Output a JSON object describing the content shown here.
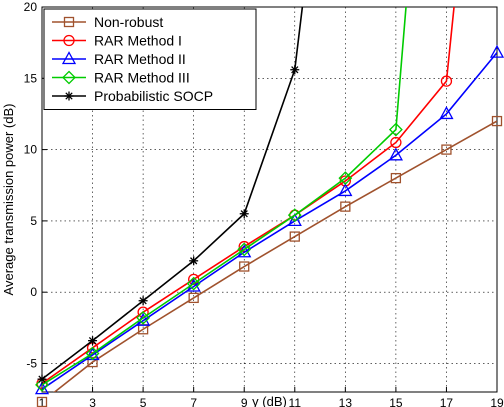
{
  "chart_data": {
    "type": "line",
    "title": "",
    "xlabel": "γ (dB)",
    "ylabel": "Average transmission power (dB)",
    "xlim": [
      1,
      19
    ],
    "ylim": [
      -7,
      20
    ],
    "xticks": [
      1,
      3,
      5,
      7,
      9,
      11,
      13,
      15,
      17,
      19
    ],
    "yticks": [
      -5,
      0,
      5,
      10,
      15,
      20
    ],
    "grid": true,
    "legend_position": "top-left",
    "series": [
      {
        "name": "Non-robust",
        "color": "#a0522d",
        "marker": "square",
        "x": [
          1,
          3,
          5,
          7,
          9,
          11,
          13,
          15,
          17,
          19
        ],
        "y": [
          -7.7,
          -4.9,
          -2.6,
          -0.4,
          1.8,
          3.9,
          6.0,
          8.0,
          10.0,
          12.0
        ]
      },
      {
        "name": "RAR Method I",
        "color": "#ff0000",
        "marker": "circle",
        "x": [
          1,
          3,
          5,
          7,
          9,
          11,
          13,
          15,
          17,
          17.3
        ],
        "y": [
          -6.4,
          -3.9,
          -1.4,
          0.9,
          3.2,
          5.4,
          7.8,
          10.5,
          14.8,
          20
        ]
      },
      {
        "name": "RAR Method II",
        "color": "#0000ff",
        "marker": "triangle",
        "x": [
          1,
          3,
          5,
          7,
          9,
          11,
          13,
          15,
          17,
          19
        ],
        "y": [
          -6.8,
          -4.4,
          -2.0,
          0.4,
          2.8,
          5.0,
          7.1,
          9.6,
          12.5,
          16.8
        ]
      },
      {
        "name": "RAR Method III",
        "color": "#00cc00",
        "marker": "diamond",
        "x": [
          1,
          3,
          5,
          7,
          9,
          11,
          13,
          15,
          15.4
        ],
        "y": [
          -6.5,
          -4.3,
          -1.8,
          0.6,
          3.0,
          5.4,
          8.0,
          11.4,
          20
        ]
      },
      {
        "name": "Probabilistic SOCP",
        "color": "#000000",
        "marker": "star",
        "x": [
          1,
          3,
          5,
          7,
          9,
          11,
          11.3
        ],
        "y": [
          -6.1,
          -3.4,
          -0.6,
          2.2,
          5.5,
          15.6,
          20
        ]
      }
    ]
  }
}
